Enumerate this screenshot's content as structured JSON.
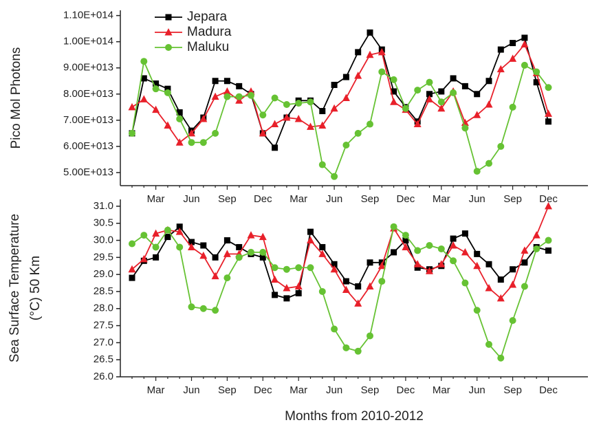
{
  "chart_data": [
    {
      "type": "line",
      "ylabel": "Pico Mol Photons",
      "categories": [
        null,
        null,
        "Mar",
        null,
        null,
        "Jun",
        null,
        null,
        "Sep",
        null,
        null,
        "Dec",
        null,
        null,
        "Mar",
        null,
        null,
        "Jun",
        null,
        null,
        "Sep",
        null,
        null,
        "Dec",
        null,
        null,
        "Mar",
        null,
        null,
        "Jun",
        null,
        null,
        "Sep",
        null,
        null,
        "Dec"
      ],
      "ylim": [
        45000000000000.0,
        112000000000000.0
      ],
      "yticks": [
        {
          "value": 50000000000000.0,
          "label": "5.00E+013"
        },
        {
          "value": 60000000000000.0,
          "label": "6.00E+013"
        },
        {
          "value": 70000000000000.0,
          "label": "7.00E+013"
        },
        {
          "value": 80000000000000.0,
          "label": "8.00E+013"
        },
        {
          "value": 90000000000000.0,
          "label": "9.00E+013"
        },
        {
          "value": 100000000000000.0,
          "label": "1.00E+014"
        },
        {
          "value": 110000000000000.0,
          "label": "1.10E+014"
        }
      ],
      "legend": "upper-left",
      "series": [
        {
          "name": "Jepara",
          "color": "#000000",
          "marker": "square",
          "values": [
            65000000000000.0,
            86000000000000.0,
            84000000000000.0,
            82000000000000.0,
            73000000000000.0,
            66000000000000.0,
            71000000000000.0,
            85000000000000.0,
            85000000000000.0,
            83000000000000.0,
            80000000000000.0,
            65000000000000.0,
            59500000000000.0,
            71000000000000.0,
            77500000000000.0,
            77500000000000.0,
            73500000000000.0,
            83500000000000.0,
            86500000000000.0,
            96000000000000.0,
            103500000000000.0,
            97000000000000.0,
            81000000000000.0,
            75000000000000.0,
            69500000000000.0,
            80000000000000.0,
            81000000000000.0,
            86000000000000.0,
            83000000000000.0,
            80000000000000.0,
            85000000000000.0,
            97000000000000.0,
            99500000000000.0,
            101500000000000.0,
            84500000000000.0,
            69500000000000.0
          ]
        },
        {
          "name": "Madura",
          "color": "#e8202a",
          "marker": "triangle",
          "values": [
            75000000000000.0,
            78000000000000.0,
            74000000000000.0,
            68000000000000.0,
            61500000000000.0,
            65000000000000.0,
            70500000000000.0,
            79000000000000.0,
            81000000000000.0,
            77500000000000.0,
            81000000000000.0,
            65000000000000.0,
            68500000000000.0,
            71000000000000.0,
            70500000000000.0,
            67500000000000.0,
            68000000000000.0,
            74500000000000.0,
            78500000000000.0,
            87000000000000.0,
            95000000000000.0,
            96000000000000.0,
            77000000000000.0,
            74000000000000.0,
            68500000000000.0,
            78000000000000.0,
            74500000000000.0,
            81000000000000.0,
            69000000000000.0,
            72000000000000.0,
            76000000000000.0,
            89500000000000.0,
            93500000000000.0,
            99000000000000.0,
            88000000000000.0,
            72500000000000.0
          ]
        },
        {
          "name": "Maluku",
          "color": "#66c233",
          "marker": "circle",
          "values": [
            65000000000000.0,
            92500000000000.0,
            82000000000000.0,
            80500000000000.0,
            70500000000000.0,
            61500000000000.0,
            61500000000000.0,
            65000000000000.0,
            79000000000000.0,
            79000000000000.0,
            79500000000000.0,
            72000000000000.0,
            78500000000000.0,
            76000000000000.0,
            76500000000000.0,
            77000000000000.0,
            53000000000000.0,
            48500000000000.0,
            60500000000000.0,
            65000000000000.0,
            68500000000000.0,
            88500000000000.0,
            85500000000000.0,
            74500000000000.0,
            81500000000000.0,
            84500000000000.0,
            77000000000000.0,
            80500000000000.0,
            67000000000000.0,
            50500000000000.0,
            53500000000000.0,
            60000000000000.0,
            75000000000000.0,
            91000000000000.0,
            88500000000000.0,
            82500000000000.0
          ]
        }
      ]
    },
    {
      "type": "line",
      "ylabel": [
        "Sea Surface Temperature",
        "(°C) 50 Km"
      ],
      "xlabel": "Months from 2010-2012",
      "categories": [
        null,
        null,
        "Mar",
        null,
        null,
        "Jun",
        null,
        null,
        "Sep",
        null,
        null,
        "Dec",
        null,
        null,
        "Mar",
        null,
        null,
        "Jun",
        null,
        null,
        "Sep",
        null,
        null,
        "Dec",
        null,
        null,
        "Mar",
        null,
        null,
        "Jun",
        null,
        null,
        "Sep",
        null,
        null,
        "Dec"
      ],
      "ylim": [
        26,
        31.2
      ],
      "yticks": [
        {
          "value": 26,
          "label": "26.0"
        },
        26.5,
        {
          "value": 27,
          "label": "27.0"
        },
        27.5,
        {
          "value": 28,
          "label": "28.0"
        },
        28.5,
        {
          "value": 29,
          "label": "29.0"
        },
        29.5,
        {
          "value": 30,
          "label": "30.0"
        },
        30.5,
        {
          "value": 31,
          "label": "31.0"
        }
      ],
      "series": [
        {
          "name": "Jepara",
          "color": "#000000",
          "marker": "square",
          "values": [
            28.9,
            29.4,
            29.5,
            30.1,
            30.4,
            29.95,
            29.85,
            29.5,
            30.0,
            29.8,
            29.6,
            29.5,
            28.4,
            28.3,
            28.45,
            30.25,
            29.8,
            29.3,
            28.8,
            28.65,
            29.35,
            29.35,
            29.65,
            30.0,
            29.2,
            29.15,
            29.25,
            30.05,
            30.2,
            29.6,
            29.3,
            28.85,
            29.15,
            29.35,
            29.8,
            29.7
          ]
        },
        {
          "name": "Madura",
          "color": "#e8202a",
          "marker": "triangle",
          "values": [
            29.15,
            29.45,
            30.2,
            30.3,
            30.25,
            29.8,
            29.55,
            28.95,
            29.6,
            29.6,
            30.15,
            30.1,
            28.85,
            28.6,
            28.65,
            30.0,
            29.6,
            29.15,
            28.55,
            28.15,
            28.65,
            29.25,
            30.35,
            29.8,
            29.3,
            29.1,
            29.3,
            29.85,
            29.65,
            29.25,
            28.6,
            28.3,
            28.7,
            29.7,
            30.15,
            31.0
          ]
        },
        {
          "name": "Maluku",
          "color": "#66c233",
          "marker": "circle",
          "values": [
            29.9,
            30.15,
            29.8,
            30.3,
            29.8,
            28.05,
            28.0,
            27.95,
            28.9,
            29.5,
            29.65,
            29.65,
            29.2,
            29.15,
            29.2,
            29.2,
            28.5,
            27.4,
            26.85,
            26.75,
            27.2,
            28.8,
            30.4,
            30.15,
            29.7,
            29.85,
            29.75,
            29.4,
            28.75,
            27.95,
            26.95,
            26.55,
            27.65,
            28.65,
            29.75,
            30.0
          ]
        }
      ]
    }
  ]
}
